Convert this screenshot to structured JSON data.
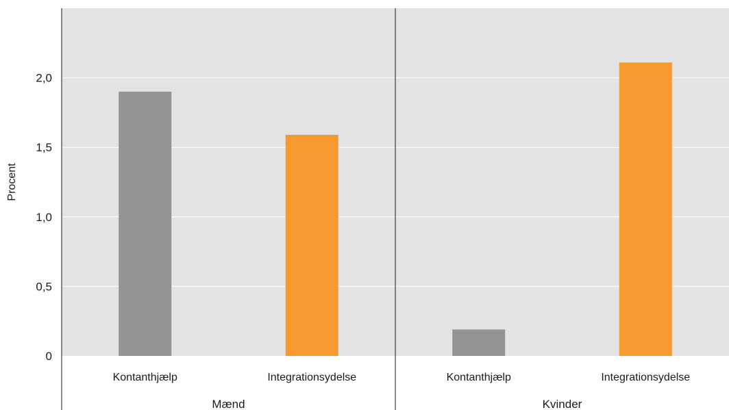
{
  "chart_data": {
    "type": "bar",
    "ylabel": "Procent",
    "ylim": [
      0,
      2.5
    ],
    "yticks": [
      {
        "value": 0,
        "label": "0"
      },
      {
        "value": 0.5,
        "label": "0,5"
      },
      {
        "value": 1.0,
        "label": "1,0"
      },
      {
        "value": 1.5,
        "label": "1,5"
      },
      {
        "value": 2.0,
        "label": "2,0"
      }
    ],
    "grid": true,
    "groups": [
      {
        "name": "Mænd",
        "bars": [
          {
            "category": "Kontanthjælp",
            "value": 1.9,
            "color": "#939393"
          },
          {
            "category": "Integrationsydelse",
            "value": 1.59,
            "color": "#f7992e"
          }
        ]
      },
      {
        "name": "Kvinder",
        "bars": [
          {
            "category": "Kontanthjælp",
            "value": 0.19,
            "color": "#939393"
          },
          {
            "category": "Integrationsydelse",
            "value": 2.11,
            "color": "#f7992e"
          }
        ]
      }
    ],
    "colors": {
      "plot_background": "#e3e3e3",
      "gridline": "#ffffff",
      "separator": "#1a1a1a"
    }
  }
}
